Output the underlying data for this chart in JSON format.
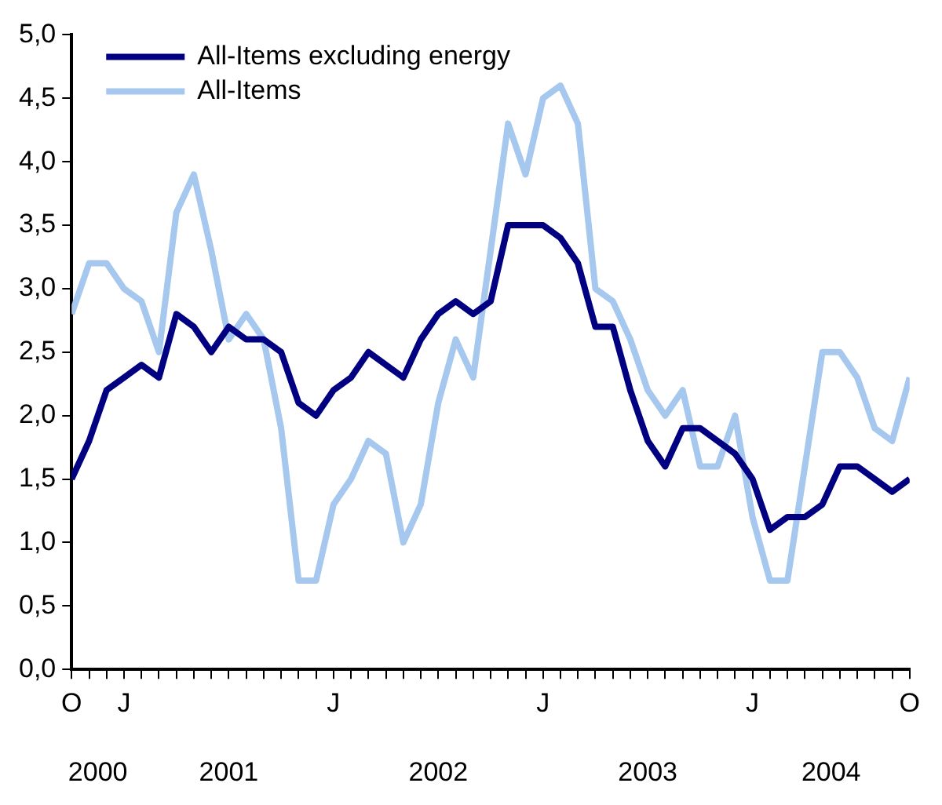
{
  "chart_data": {
    "type": "line",
    "categories": [
      "O",
      null,
      null,
      "J",
      null,
      null,
      null,
      null,
      null,
      null,
      null,
      null,
      null,
      null,
      null,
      "J",
      null,
      null,
      null,
      null,
      null,
      null,
      null,
      null,
      null,
      null,
      null,
      "J",
      null,
      null,
      null,
      null,
      null,
      null,
      null,
      null,
      null,
      null,
      null,
      "J",
      null,
      null,
      null,
      null,
      null,
      null,
      null,
      null,
      "O"
    ],
    "annotations": [
      "2000",
      "2001",
      "2002",
      "2003",
      "2004"
    ],
    "series": [
      {
        "name": "All-Items excluding energy",
        "color": "#000080",
        "values": [
          1.5,
          1.8,
          2.2,
          2.3,
          2.4,
          2.3,
          2.8,
          2.7,
          2.5,
          2.7,
          2.6,
          2.6,
          2.5,
          2.1,
          2.0,
          2.2,
          2.3,
          2.5,
          2.4,
          2.3,
          2.6,
          2.8,
          2.9,
          2.8,
          2.9,
          3.5,
          3.5,
          3.5,
          3.4,
          3.2,
          2.7,
          2.7,
          2.2,
          1.8,
          1.6,
          1.9,
          1.9,
          1.8,
          1.7,
          1.5,
          1.1,
          1.2,
          1.2,
          1.3,
          1.6,
          1.6,
          1.5,
          1.4,
          1.5
        ]
      },
      {
        "name": "All-Items",
        "color": "#a6c8ee",
        "values": [
          2.8,
          3.2,
          3.2,
          3.0,
          2.9,
          2.5,
          3.6,
          3.9,
          3.3,
          2.6,
          2.8,
          2.6,
          1.9,
          0.7,
          0.7,
          1.3,
          1.5,
          1.8,
          1.7,
          1.0,
          1.3,
          2.1,
          2.6,
          2.3,
          3.3,
          4.3,
          3.9,
          4.5,
          4.6,
          4.3,
          3.0,
          2.9,
          2.6,
          2.2,
          2.0,
          2.2,
          1.6,
          1.6,
          2.0,
          1.2,
          0.7,
          0.7,
          1.6,
          2.5,
          2.5,
          2.3,
          1.9,
          1.8,
          2.3
        ]
      }
    ],
    "ylim": [
      0,
      5
    ],
    "yticks": [
      {
        "value": 0,
        "label": "0,0"
      },
      {
        "value": 0.5,
        "label": "0,5"
      },
      {
        "value": 1,
        "label": "1,0"
      },
      {
        "value": 1.5,
        "label": "1,5"
      },
      {
        "value": 2,
        "label": "2,0"
      },
      {
        "value": 2.5,
        "label": "2,5"
      },
      {
        "value": 3,
        "label": "3,0"
      },
      {
        "value": 3.5,
        "label": "3,5"
      },
      {
        "value": 4,
        "label": "4,0"
      },
      {
        "value": 4.5,
        "label": "4,5"
      },
      {
        "value": 5,
        "label": "5,0"
      }
    ],
    "grid": false,
    "legend": "top left",
    "marker": "none",
    "line_style": "solid"
  }
}
